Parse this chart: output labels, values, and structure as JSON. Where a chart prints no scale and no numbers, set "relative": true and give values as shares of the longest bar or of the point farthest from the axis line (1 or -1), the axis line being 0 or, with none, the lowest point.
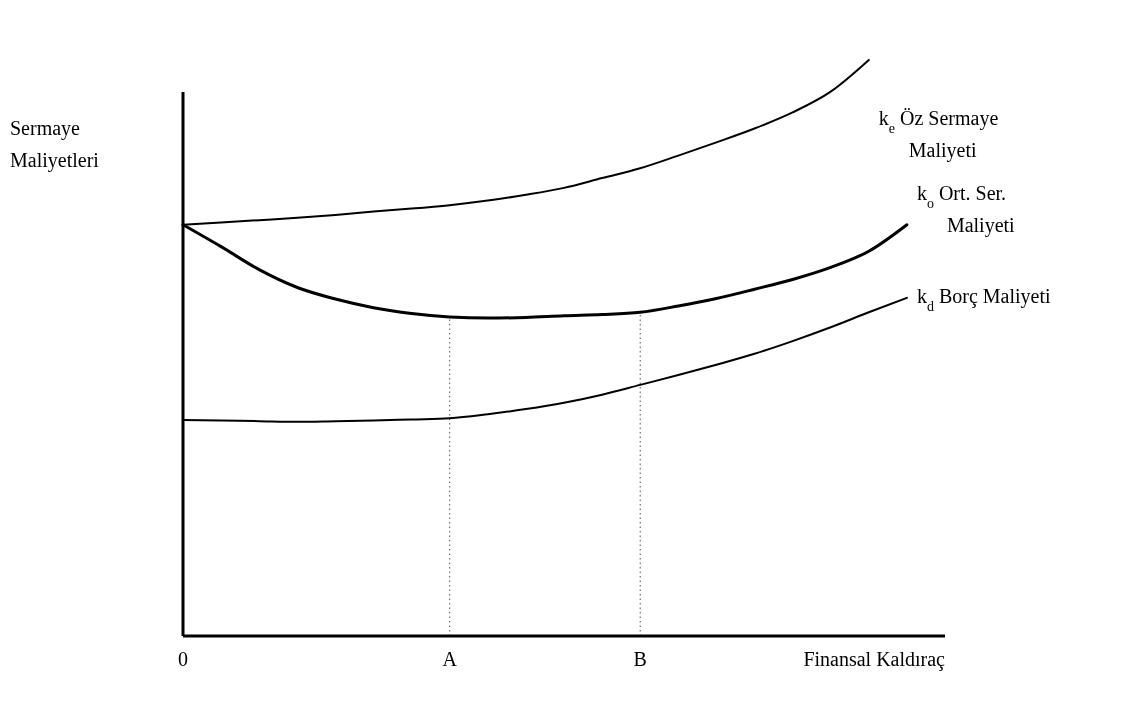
{
  "chart_data": {
    "type": "line",
    "relative": true,
    "ylabel": "Sermaye\nMaliyetleri",
    "xlabel": "Finansal Kaldıraç",
    "categories": [
      "0",
      null,
      null,
      null,
      null,
      null,
      null,
      "A",
      null,
      null,
      null,
      null,
      "B",
      null,
      null,
      null,
      null,
      null,
      null,
      null
    ],
    "legend": false,
    "grid": false,
    "marker": "none",
    "line_style": "solid",
    "series": [
      {
        "name": "k$_{e}$ Öz Sermaye Maliyeti",
        "color": "#000000",
        "values": [
          0.714,
          0.718,
          0.722,
          0.726,
          0.731,
          0.737,
          0.742,
          0.748,
          0.756,
          0.766,
          0.778,
          0.795,
          0.812,
          0.834,
          0.857,
          0.881,
          0.909,
          0.945,
          1,
          null
        ]
      },
      {
        "name": "k$_{o}$ Ort. Ser. Maliyeti",
        "color": "#000000",
        "values": [
          0.714,
          0.676,
          0.636,
          0.605,
          0.585,
          0.57,
          0.56,
          0.554,
          0.552,
          0.553,
          0.556,
          0.558,
          0.562,
          0.573,
          0.586,
          0.602,
          0.619,
          0.64,
          0.668,
          0.714
        ]
      },
      {
        "name": "k$_{d}$ Borç Maliyeti",
        "color": "#000000",
        "values": [
          0.375,
          0.374,
          0.373,
          0.372,
          0.373,
          0.374,
          0.376,
          0.378,
          0.385,
          0.394,
          0.405,
          0.419,
          0.436,
          0.453,
          0.471,
          0.49,
          0.512,
          0.536,
          0.562,
          0.587
        ]
      }
    ],
    "ref_lines": [
      {
        "axis": "x",
        "value": "A",
        "line_style": "dotted"
      },
      {
        "axis": "x",
        "value": "B",
        "line_style": "dotted"
      }
    ]
  }
}
